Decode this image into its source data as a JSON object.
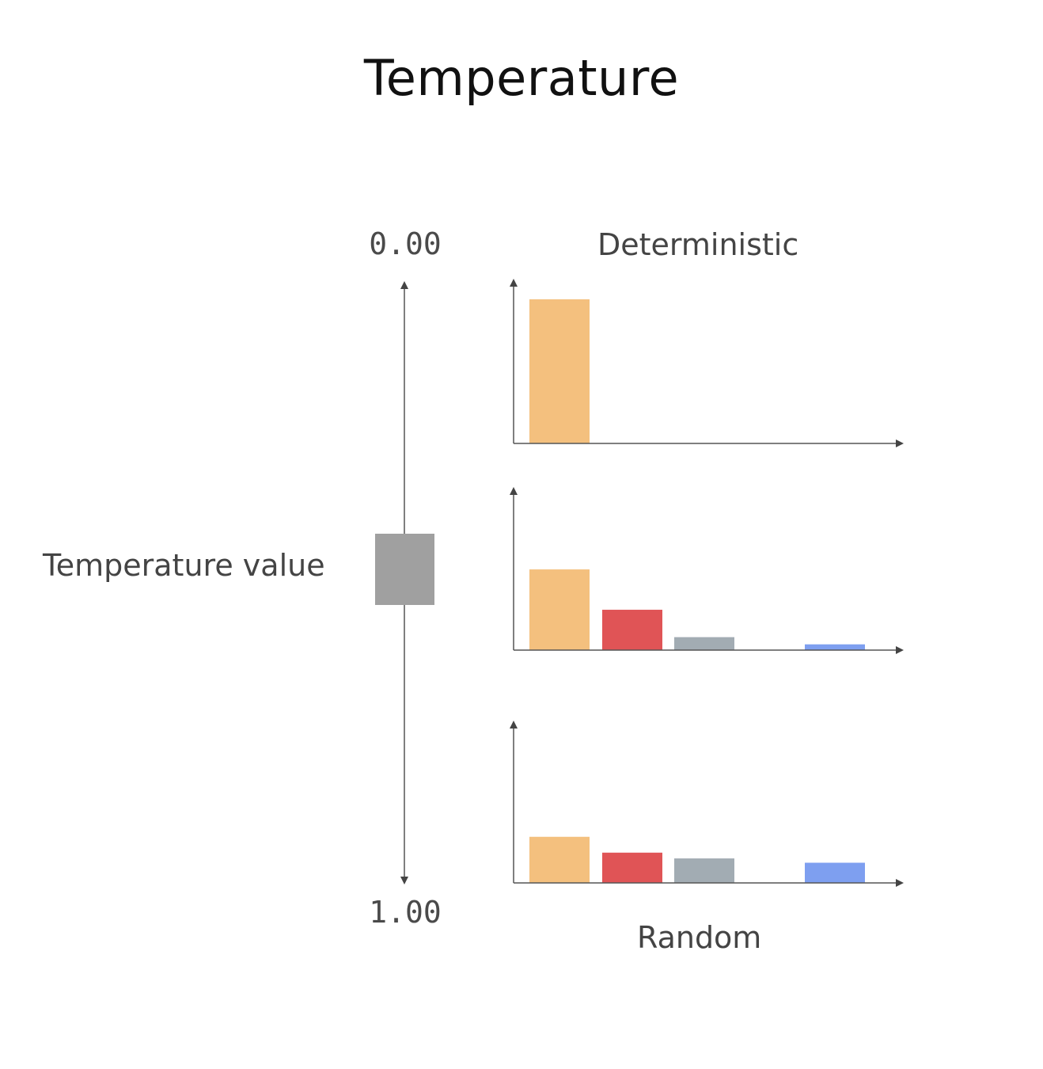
{
  "title": "Temperature",
  "slider": {
    "top_label": "0.00",
    "bottom_label": "1.00",
    "handle_label": "Temperature value",
    "handle_color": "#a0a0a0",
    "axis_color": "#555555"
  },
  "top_caption": "Deterministic",
  "bottom_caption": "Random",
  "colors": [
    "#f4c07e",
    "#e05456",
    "#a2acb3",
    "#7e9ff0"
  ],
  "chart_data": [
    {
      "type": "bar",
      "categories": [
        "",
        "",
        "",
        ""
      ],
      "values": [
        1.0,
        0,
        0,
        0
      ]
    },
    {
      "type": "bar",
      "categories": [
        "",
        "",
        "",
        ""
      ],
      "values": [
        0.56,
        0.28,
        0.09,
        0.04
      ]
    },
    {
      "type": "bar",
      "categories": [
        "",
        "",
        "",
        ""
      ],
      "values": [
        0.32,
        0.21,
        0.17,
        0.14
      ]
    }
  ]
}
